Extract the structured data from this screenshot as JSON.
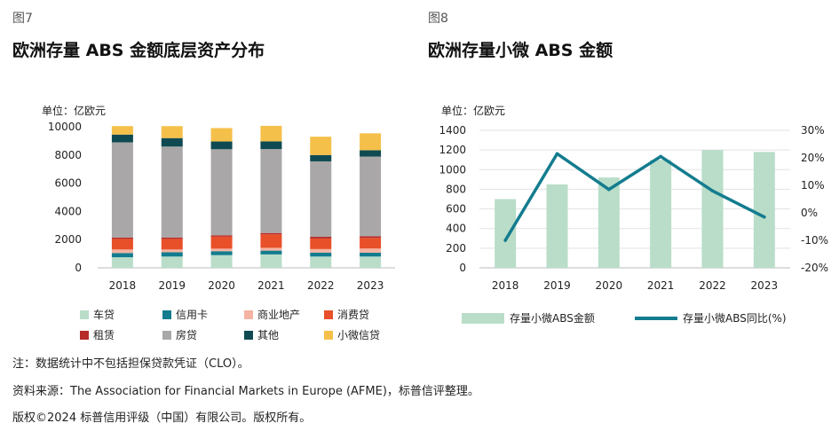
{
  "fig7": {
    "label": "图7",
    "title": "欧洲存量 ABS 金额底层资产分布",
    "unit": "单位：亿欧元"
  },
  "fig8": {
    "label": "图8",
    "title": "欧洲存量小微 ABS 金额",
    "unit": "单位：亿欧元"
  },
  "chart_data": [
    {
      "type": "bar",
      "stacked": true,
      "categories": [
        "2018",
        "2019",
        "2020",
        "2021",
        "2022",
        "2023"
      ],
      "ylim": [
        0,
        10000
      ],
      "yticks": [
        "0",
        "2000",
        "4000",
        "6000",
        "8000",
        "10000"
      ],
      "grid": false,
      "legend_position": "bottom",
      "series": [
        {
          "name": "车贷",
          "color": "#b9ddc9",
          "values": [
            750,
            800,
            900,
            950,
            800,
            800
          ]
        },
        {
          "name": "信用卡",
          "color": "#137c8e",
          "values": [
            300,
            300,
            280,
            270,
            280,
            270
          ]
        },
        {
          "name": "商业地产",
          "color": "#f4b3a3",
          "values": [
            250,
            200,
            180,
            200,
            250,
            300
          ]
        },
        {
          "name": "消费贷",
          "color": "#e8502a",
          "values": [
            750,
            750,
            850,
            950,
            750,
            750
          ]
        },
        {
          "name": "租赁",
          "color": "#b62a2a",
          "values": [
            100,
            100,
            100,
            100,
            120,
            120
          ]
        },
        {
          "name": "房贷",
          "color": "#a9a7a7",
          "values": [
            6750,
            6450,
            6100,
            5950,
            5350,
            5650
          ]
        },
        {
          "name": "其他",
          "color": "#0f4a52",
          "values": [
            550,
            600,
            550,
            550,
            450,
            450
          ]
        },
        {
          "name": "小微信贷",
          "color": "#f5c04a",
          "values": [
            600,
            850,
            950,
            1100,
            1300,
            1200
          ]
        }
      ]
    },
    {
      "type": "bar",
      "categories": [
        "2018",
        "2019",
        "2020",
        "2021",
        "2022",
        "2023"
      ],
      "ylim": [
        0,
        1400
      ],
      "yticks": [
        "0",
        "200",
        "400",
        "600",
        "800",
        "1000",
        "1200",
        "1400"
      ],
      "y2lim": [
        -20,
        30
      ],
      "y2ticks": [
        "-20%",
        "-10%",
        "0%",
        "10%",
        "20%",
        "30%"
      ],
      "grid": true,
      "legend_position": "bottom",
      "series": [
        {
          "name": "存量小微ABS金额",
          "type": "bar",
          "color": "#b9ddc9",
          "values": [
            700,
            850,
            920,
            1100,
            1200,
            1180
          ]
        },
        {
          "name": "存量小微ABS同比(%)",
          "type": "line",
          "axis": "right",
          "color": "#137c8e",
          "values": [
            -10,
            21.5,
            8.5,
            20.5,
            8,
            -1.5
          ]
        }
      ]
    }
  ],
  "notes": {
    "note": "注：数据统计中不包括担保贷款凭证（CLO）。",
    "source": "资料来源：The Association for Financial Markets in Europe (AFME)，标普信评整理。",
    "copyright": "版权©2024 标普信用评级（中国）有限公司。版权所有。"
  }
}
